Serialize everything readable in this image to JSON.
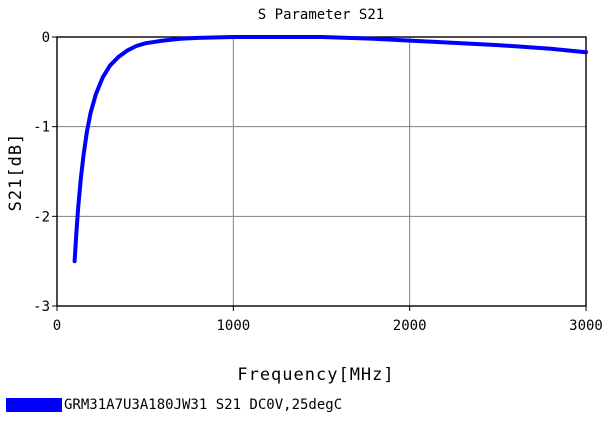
{
  "chart_data": {
    "type": "line",
    "title": "S Parameter S21",
    "xlabel": "Frequency[MHz]",
    "ylabel": "S21[dB]",
    "xlim": [
      0,
      3000
    ],
    "ylim": [
      -3,
      0
    ],
    "xticks": [
      0,
      1000,
      2000,
      3000
    ],
    "xtick_labels": [
      "0",
      "1000",
      "2000",
      "3000"
    ],
    "yticks": [
      0,
      -1,
      -2,
      -3
    ],
    "ytick_labels": [
      "0",
      "-1",
      "-2",
      "-3"
    ],
    "grid": true,
    "legend_position": "bottom",
    "series": [
      {
        "name": "GRM31A7U3A180JW31 S21 DC0V,25degC",
        "color": "#0000ff",
        "x": [
          100,
          110,
          120,
          135,
          150,
          170,
          190,
          220,
          260,
          300,
          350,
          400,
          450,
          500,
          600,
          700,
          800,
          1000,
          1200,
          1500,
          1800,
          2000,
          2200,
          2500,
          2800,
          3000
        ],
        "y": [
          -2.5,
          -2.18,
          -1.9,
          -1.58,
          -1.32,
          -1.05,
          -0.85,
          -0.64,
          -0.45,
          -0.32,
          -0.22,
          -0.15,
          -0.1,
          -0.07,
          -0.04,
          -0.02,
          -0.01,
          0.0,
          0.0,
          0.0,
          -0.02,
          -0.04,
          -0.06,
          -0.09,
          -0.13,
          -0.17
        ]
      }
    ]
  }
}
